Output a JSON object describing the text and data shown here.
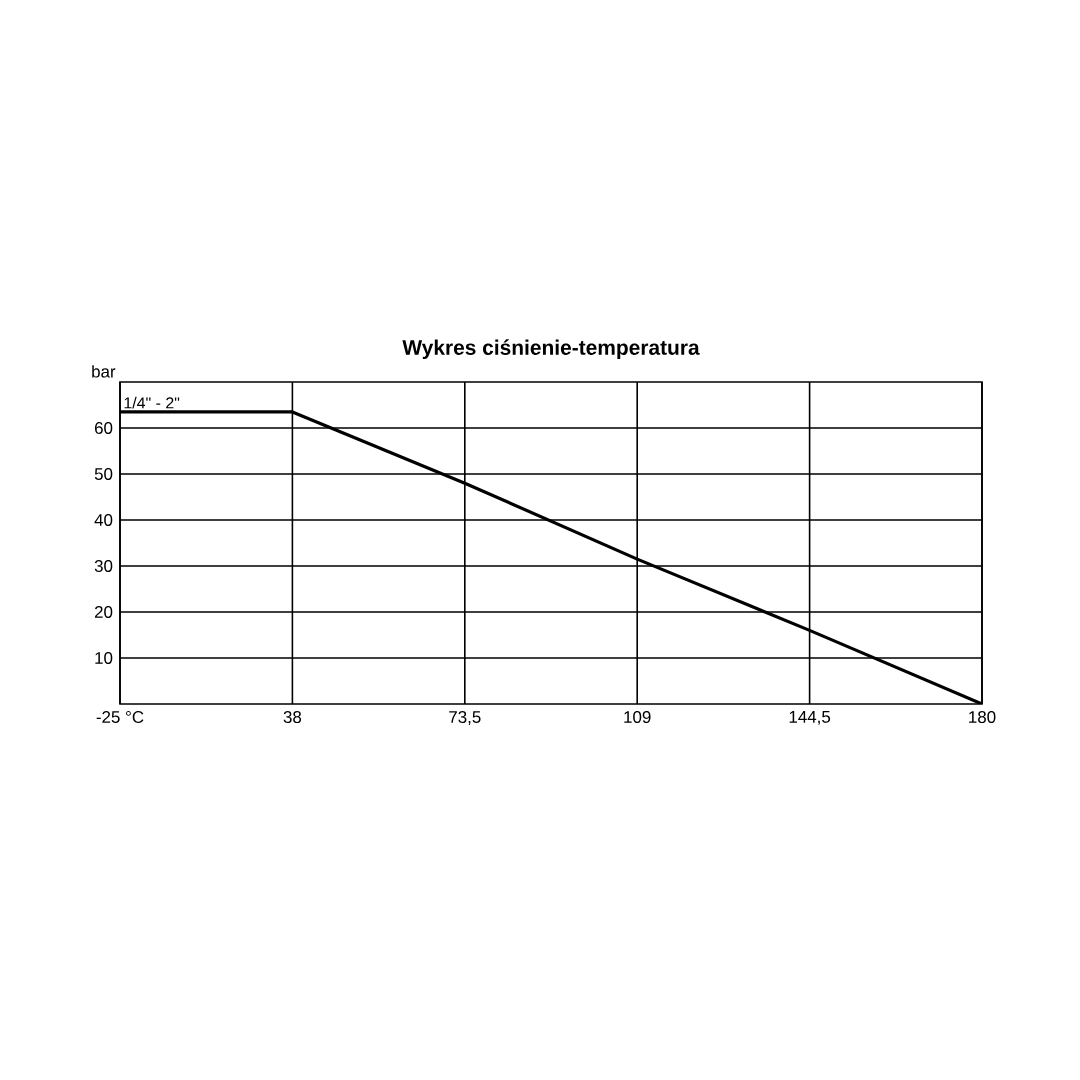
{
  "chart_data": {
    "type": "line",
    "title": "Wykres ciśnienie-temperatura",
    "ylabel": "bar",
    "categories": [
      "-25 °C",
      "38",
      "73,5",
      "109",
      "144,5",
      "180"
    ],
    "series": [
      {
        "name": "1/4\" - 2\"",
        "color": "#000000",
        "values": [
          63.5,
          63.5,
          48,
          31.5,
          16,
          0
        ]
      }
    ],
    "ylim": [
      0,
      70
    ],
    "yticks": [
      10,
      20,
      30,
      40,
      50,
      60
    ],
    "grid": true,
    "legend": false,
    "marker": "none",
    "line_style": "solid"
  }
}
